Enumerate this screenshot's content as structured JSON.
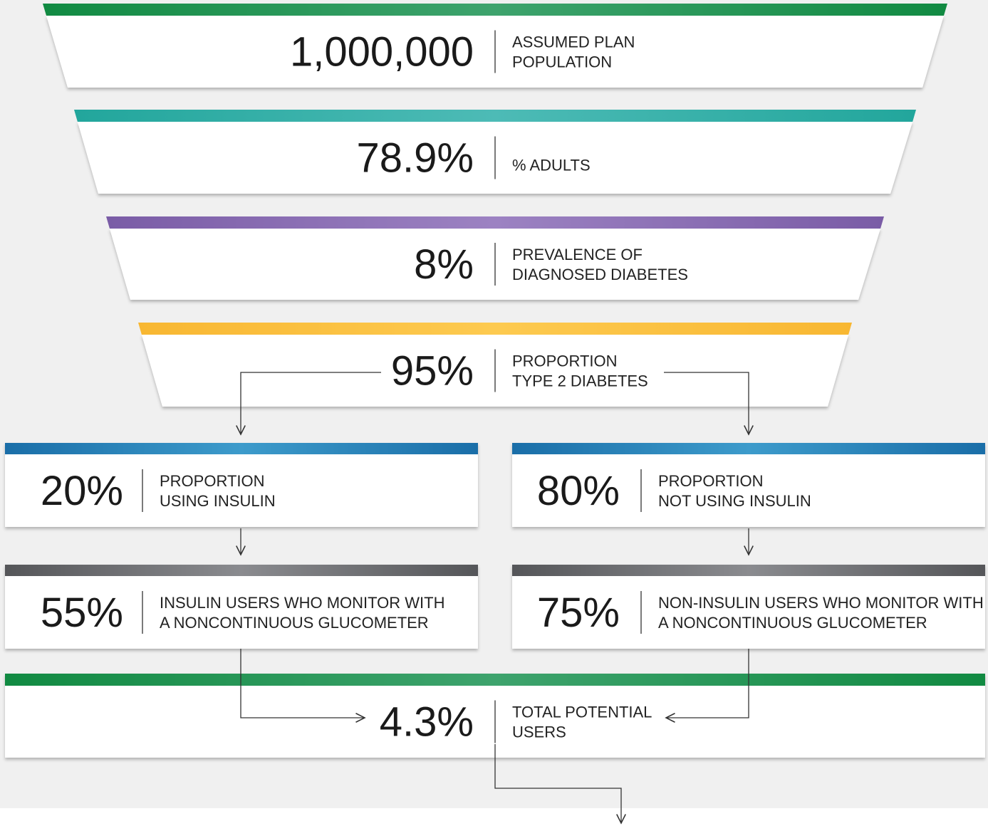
{
  "funnel": [
    {
      "value": "1,000,000",
      "lines": [
        "ASSUMED PLAN",
        "POPULATION"
      ]
    },
    {
      "value": "78.9%",
      "lines": [
        "% ADULTS"
      ]
    },
    {
      "value": "8%",
      "lines": [
        "PREVALENCE OF",
        "DIAGNOSED DIABETES"
      ]
    },
    {
      "value": "95%",
      "lines": [
        "PROPORTION",
        "TYPE 2 DIABETES"
      ]
    }
  ],
  "branches": [
    {
      "value": "20%",
      "lines": [
        "PROPORTION",
        "USING INSULIN"
      ]
    },
    {
      "value": "80%",
      "lines": [
        "PROPORTION",
        "NOT USING INSULIN"
      ]
    },
    {
      "value": "55%",
      "lines": [
        "INSULIN USERS WHO MONITOR WITH",
        "A NONCONTINUOUS GLUCOMETER"
      ]
    },
    {
      "value": "75%",
      "lines": [
        "NON-INSULIN USERS WHO MONITOR WITH",
        "A NONCONTINUOUS GLUCOMETER"
      ]
    }
  ],
  "total": {
    "value": "4.3%",
    "lines": [
      "TOTAL POTENTIAL",
      "USERS"
    ]
  }
}
